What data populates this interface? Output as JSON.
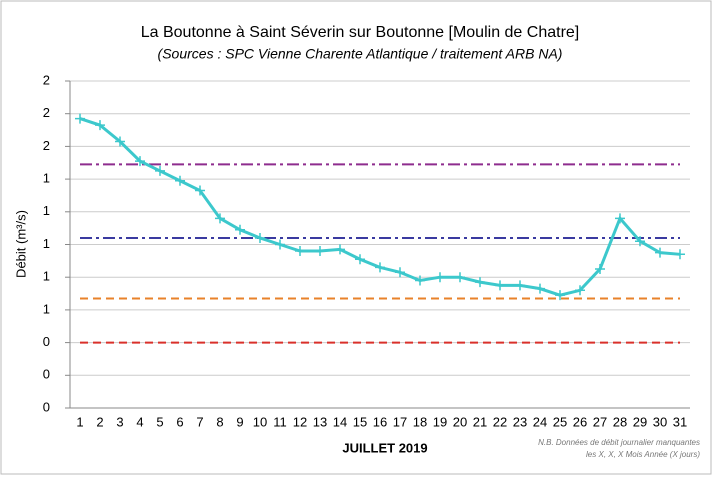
{
  "chart_data": {
    "type": "line",
    "title": "La Boutonne à Saint Séverin sur Boutonne [Moulin de Chatre]",
    "subtitle": "(Sources : SPC Vienne Charente Atlantique / traitement ARB NA)",
    "xlabel": "JUILLET 2019",
    "ylabel": "Débit (m³/s)",
    "note": [
      "N.B. Données de débit journalier manquantes",
      "les X, X, X Mois Année (X jours)"
    ],
    "categories": [
      "1",
      "2",
      "3",
      "4",
      "5",
      "6",
      "7",
      "8",
      "9",
      "10",
      "11",
      "12",
      "13",
      "14",
      "15",
      "16",
      "17",
      "18",
      "19",
      "20",
      "21",
      "22",
      "23",
      "24",
      "25",
      "26",
      "27",
      "28",
      "29",
      "30",
      "31"
    ],
    "series": [
      {
        "color": "#3cc8cc",
        "values": [
          1.77,
          1.73,
          1.63,
          1.51,
          1.45,
          1.39,
          1.33,
          1.16,
          1.09,
          1.04,
          1.0,
          0.96,
          0.96,
          0.97,
          0.91,
          0.86,
          0.83,
          0.78,
          0.8,
          0.8,
          0.77,
          0.75,
          0.75,
          0.73,
          0.69,
          0.72,
          0.85,
          1.16,
          1.02,
          0.95,
          0.94
        ]
      }
    ],
    "reference_lines": [
      {
        "value": 1.49,
        "color": "#8e2c8e",
        "style": "dash-dot"
      },
      {
        "value": 1.04,
        "color": "#3a3aa0",
        "style": "dash-dot"
      },
      {
        "value": 0.67,
        "color": "#e8822a",
        "style": "dashed"
      },
      {
        "value": 0.4,
        "color": "#d9302a",
        "style": "dashed"
      }
    ],
    "ylim": [
      0,
      2
    ],
    "yticks": [
      0,
      {
        "value": 0.2,
        "label": "0"
      },
      {
        "value": 0.4,
        "label": "0"
      },
      {
        "value": 0.6,
        "label": "1"
      },
      {
        "value": 0.8,
        "label": "1"
      },
      1,
      {
        "value": 1.2,
        "label": "1"
      },
      {
        "value": 1.4,
        "label": "1"
      },
      {
        "value": 1.6,
        "label": "2"
      },
      {
        "value": 1.8,
        "label": "2"
      },
      2
    ],
    "grid": true
  }
}
